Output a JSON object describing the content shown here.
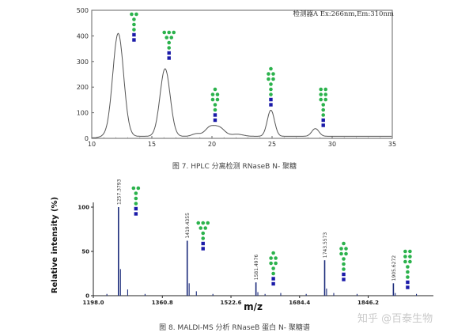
{
  "chart_data": [
    {
      "type": "line",
      "title": "",
      "xlabel": "",
      "ylabel": "",
      "xlim": [
        10,
        35
      ],
      "ylim": [
        0,
        500
      ],
      "x_ticks": [
        10,
        15,
        20,
        25,
        30,
        35
      ],
      "y_ticks": [
        0,
        100,
        200,
        300,
        400,
        500
      ],
      "legend_text": "检测器A Ex:266nm,Em:310nm",
      "legend_position": "top-right",
      "grid": false,
      "baseline": 8,
      "peaks": [
        {
          "rt": 12.2,
          "height": 410,
          "glycan": "Man5"
        },
        {
          "rt": 16.1,
          "height": 272,
          "glycan": "Man6"
        },
        {
          "rt": 18.7,
          "height": 18,
          "glycan": ""
        },
        {
          "rt": 19.8,
          "height": 40,
          "glycan": "Man7"
        },
        {
          "rt": 20.6,
          "height": 42,
          "glycan": ""
        },
        {
          "rt": 22.1,
          "height": 16,
          "glycan": ""
        },
        {
          "rt": 24.9,
          "height": 110,
          "glycan": "Man8"
        },
        {
          "rt": 28.6,
          "height": 38,
          "glycan": "Man9"
        }
      ]
    },
    {
      "type": "bar",
      "title": "",
      "xlabel": "m/z",
      "ylabel": "Relative intensity (%)",
      "xlim": [
        1198.0,
        2000.0
      ],
      "ylim": [
        0,
        100
      ],
      "x_ticks": [
        "1198.0",
        "1360.8",
        "1522.6",
        "1684.4",
        "1846.2"
      ],
      "y_ticks": [
        "0",
        "50",
        "100"
      ],
      "peaks": [
        {
          "mz": 1257.3793,
          "label": "1257.3793",
          "intensity": 100,
          "glycan": "Man5"
        },
        {
          "mz": 1419.4355,
          "label": "1419.4355",
          "intensity": 62,
          "glycan": "Man6"
        },
        {
          "mz": 1581.4976,
          "label": "1581.4976",
          "intensity": 15,
          "glycan": "Man7"
        },
        {
          "mz": 1743.5573,
          "label": "1743.5573",
          "intensity": 40,
          "glycan": "Man8"
        },
        {
          "mz": 1905.6272,
          "label": "1905.6272",
          "intensity": 14,
          "glycan": "Man9"
        }
      ],
      "minor_peaks": [
        {
          "mz": 1262,
          "intensity": 30
        },
        {
          "mz": 1279,
          "intensity": 7
        },
        {
          "mz": 1424,
          "intensity": 14
        },
        {
          "mz": 1441,
          "intensity": 5
        },
        {
          "mz": 1586,
          "intensity": 4
        },
        {
          "mz": 1603,
          "intensity": 2
        },
        {
          "mz": 1748,
          "intensity": 8
        },
        {
          "mz": 1765,
          "intensity": 3
        },
        {
          "mz": 1910,
          "intensity": 3
        },
        {
          "mz": 1230,
          "intensity": 2
        },
        {
          "mz": 1320,
          "intensity": 2
        },
        {
          "mz": 1480,
          "intensity": 2
        },
        {
          "mz": 1640,
          "intensity": 3
        },
        {
          "mz": 1700,
          "intensity": 2
        },
        {
          "mz": 1820,
          "intensity": 2
        },
        {
          "mz": 1960,
          "intensity": 2
        }
      ]
    }
  ],
  "captions": {
    "hplc": "图 7. HPLC 分离检测 RNaseB N- 聚糖",
    "maldi": "图 8. MALDI-MS 分析 RNaseB 蛋白 N- 聚糖谱"
  },
  "watermark": "知乎 @百泰生物",
  "colors": {
    "mannose": "#2bb24c",
    "glcnac": "#1a1aa8",
    "trace": "#555555",
    "ms_peak": "#1a2a7a"
  }
}
